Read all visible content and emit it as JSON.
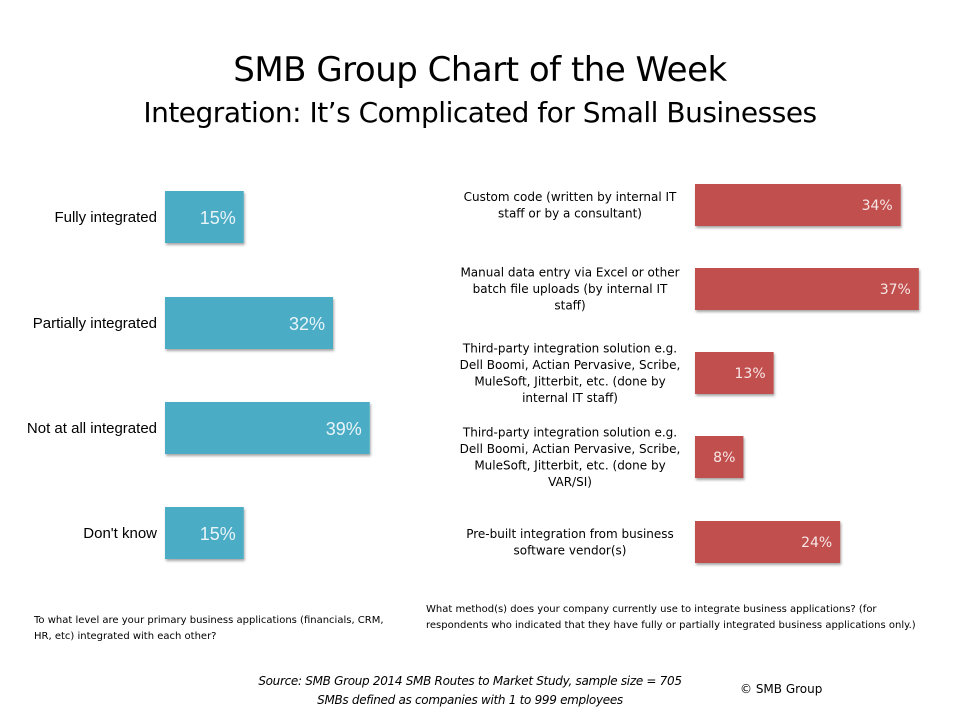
{
  "header": {
    "title": "SMB Group Chart of the Week",
    "subtitle": "Integration: It’s Complicated for Small Businesses"
  },
  "chart_data": [
    {
      "type": "bar",
      "orientation": "horizontal",
      "title": "",
      "categories": [
        "Fully integrated",
        "Partially integrated",
        "Not at all integrated",
        "Don't know"
      ],
      "values": [
        15,
        32,
        39,
        15
      ],
      "value_labels": [
        "15%",
        "32%",
        "39%",
        "15%"
      ],
      "unit": "%",
      "xlim": [
        0,
        45
      ],
      "grid": false,
      "color": "#4bacc6",
      "question": "To what level are your primary business applications (financials, CRM, HR, etc) integrated with each other?"
    },
    {
      "type": "bar",
      "orientation": "horizontal",
      "title": "",
      "categories": [
        [
          "Custom code (written by internal IT",
          "staff or by a consultant)"
        ],
        [
          "Manual data entry via Excel or other",
          "batch file uploads (by internal IT",
          "staff)"
        ],
        [
          "Third-party integration solution e.g.",
          "Dell Boomi, Actian Pervasive, Scribe,",
          "MuleSoft, Jitterbit, etc. (done by",
          "internal IT staff)"
        ],
        [
          "Third-party integration solution e.g.",
          "Dell Boomi, Actian Pervasive, Scribe,",
          "MuleSoft, Jitterbit, etc. (done by",
          "VAR/SI)"
        ],
        [
          "Pre-built integration from business",
          "software vendor(s)"
        ]
      ],
      "values": [
        34,
        37,
        13,
        8,
        24
      ],
      "value_labels": [
        "34%",
        "37%",
        "13%",
        "8%",
        "24%"
      ],
      "unit": "%",
      "xlim": [
        0,
        40
      ],
      "grid": false,
      "color": "#c0504d",
      "question": "What method(s) does your company currently use to integrate business applications? (for respondents who indicated that they  have fully or partially integrated business applications only.)"
    }
  ],
  "footer": {
    "source_line1": "Source: SMB Group 2014 SMB Routes to Market Study, sample size = 705",
    "source_line2": "SMBs defined as companies with 1 to 999 employees",
    "copyright": "© SMB Group"
  }
}
